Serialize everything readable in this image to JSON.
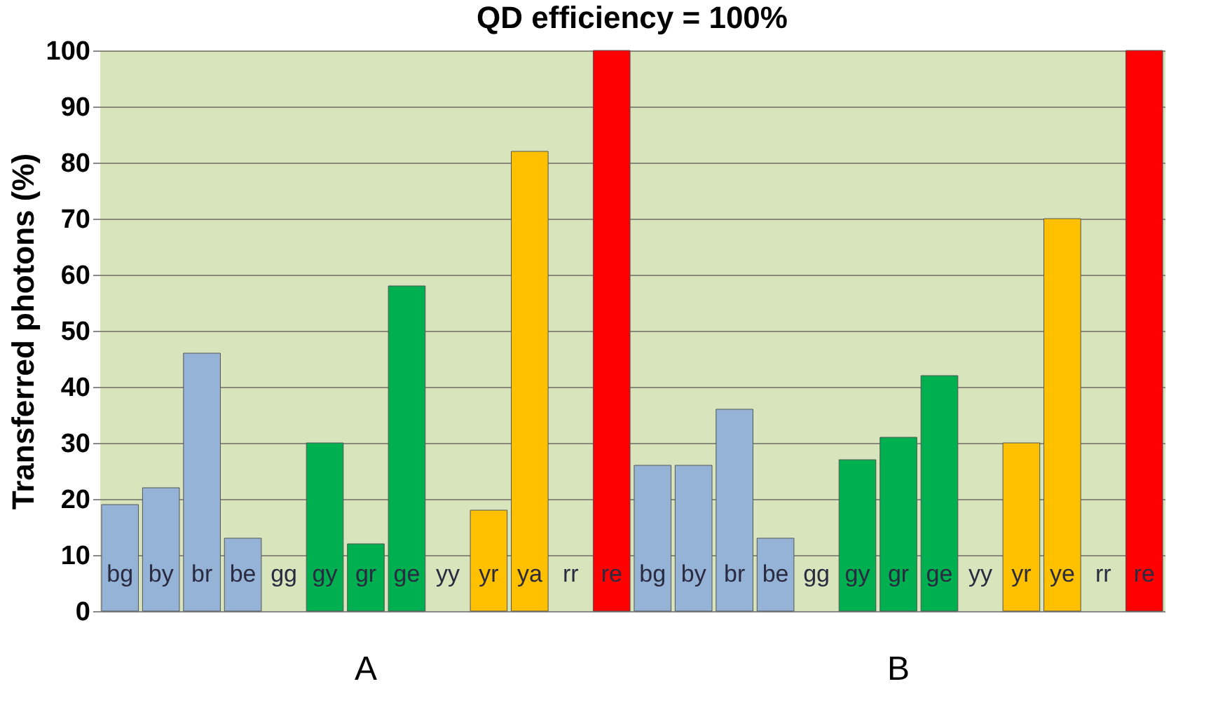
{
  "chart_data": {
    "type": "bar",
    "title": "QD efficiency = 100%",
    "ylabel": "Transferred photons (%)",
    "categories": [
      "bg",
      "by",
      "br",
      "be",
      "gg",
      "gy",
      "gr",
      "ge",
      "yy",
      "yr",
      "ya",
      "rr",
      "re",
      "bg",
      "by",
      "br",
      "be",
      "gg",
      "gy",
      "gr",
      "ge",
      "yy",
      "yr",
      "ye",
      "rr",
      "re"
    ],
    "values": [
      19,
      22,
      46,
      13,
      null,
      30,
      12,
      58,
      null,
      18,
      82,
      null,
      100,
      26,
      26,
      36,
      13,
      null,
      27,
      31,
      42,
      null,
      30,
      70,
      null,
      100
    ],
    "colors": [
      "#95b3d7",
      "#95b3d7",
      "#95b3d7",
      "#95b3d7",
      "#d8e4bc",
      "#00b050",
      "#00b050",
      "#00b050",
      "#d8e4bc",
      "#ffc000",
      "#ffc000",
      "#d8e4bc",
      "#ff0000",
      "#95b3d7",
      "#95b3d7",
      "#95b3d7",
      "#95b3d7",
      "#d8e4bc",
      "#00b050",
      "#00b050",
      "#00b050",
      "#d8e4bc",
      "#ffc000",
      "#ffc000",
      "#d8e4bc",
      "#ff0000"
    ],
    "ylim": [
      0,
      100
    ],
    "yticks": [
      0,
      10,
      20,
      30,
      40,
      50,
      60,
      70,
      80,
      90,
      100
    ],
    "grid": "y",
    "annotations": [
      "A",
      "B"
    ]
  }
}
